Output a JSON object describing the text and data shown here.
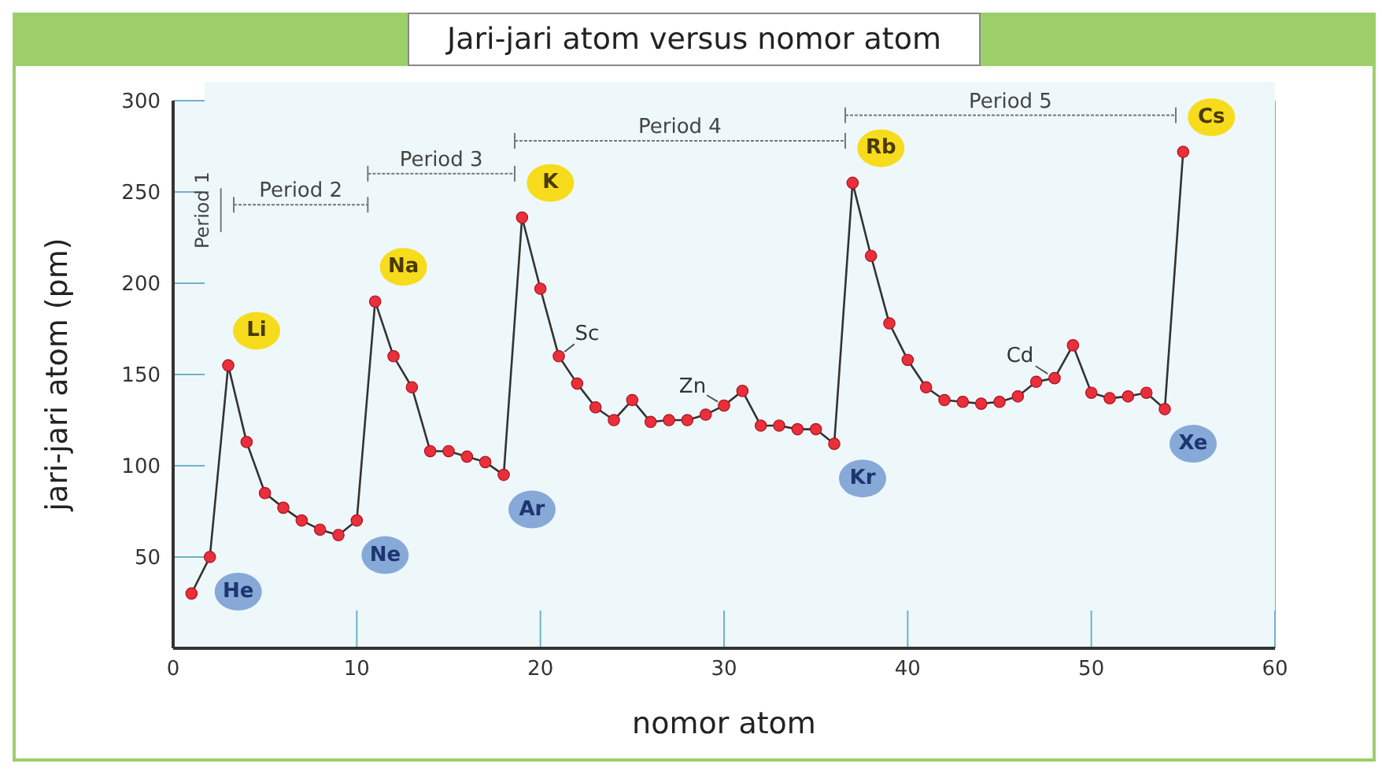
{
  "chart_data": {
    "type": "line",
    "title": "Jari-jari atom versus nomor atom",
    "xlabel": "nomor atom",
    "ylabel": "jari-jari atom (pm)",
    "x": [
      1,
      2,
      3,
      4,
      5,
      6,
      7,
      8,
      9,
      10,
      11,
      12,
      13,
      14,
      15,
      16,
      17,
      18,
      19,
      20,
      21,
      22,
      23,
      24,
      25,
      26,
      27,
      28,
      29,
      30,
      31,
      32,
      33,
      34,
      35,
      36,
      37,
      38,
      39,
      40,
      41,
      42,
      43,
      44,
      45,
      46,
      47,
      48,
      49,
      50,
      51,
      52,
      53,
      54,
      55
    ],
    "series": [
      {
        "color": "#e8303a",
        "values": [
          30,
          50,
          155,
          113,
          85,
          77,
          70,
          65,
          62,
          70,
          190,
          160,
          143,
          108,
          108,
          105,
          102,
          95,
          236,
          197,
          160,
          145,
          132,
          125,
          136,
          124,
          125,
          125,
          128,
          133,
          141,
          122,
          122,
          120,
          120,
          112,
          255,
          215,
          178,
          158,
          143,
          136,
          135,
          134,
          135,
          138,
          146,
          148,
          166,
          140,
          137,
          138,
          140,
          131,
          272
        ]
      }
    ],
    "xlim": [
      0,
      60
    ],
    "xticks": [
      0,
      10,
      20,
      30,
      40,
      50,
      60
    ],
    "ylim": [
      0,
      300
    ],
    "yticks": [
      50,
      100,
      150,
      200,
      250,
      300
    ],
    "grid": true,
    "marker": "circle",
    "line_style": "solid",
    "annotations": [
      "Period 1",
      "Period 2",
      "Period 3",
      "Period 4",
      "Period 5",
      {
        "text": "Li",
        "x": 3,
        "y": 155
      },
      {
        "text": "Na",
        "x": 11,
        "y": 190
      },
      {
        "text": "K",
        "x": 19,
        "y": 236
      },
      {
        "text": "Rb",
        "x": 37,
        "y": 255
      },
      {
        "text": "Cs",
        "x": 55,
        "y": 272
      },
      {
        "text": "He",
        "x": 2,
        "y": 50
      },
      {
        "text": "Ne",
        "x": 10,
        "y": 70
      },
      {
        "text": "Ar",
        "x": 18,
        "y": 95
      },
      {
        "text": "Kr",
        "x": 36,
        "y": 112
      },
      {
        "text": "Xe",
        "x": 54,
        "y": 131
      },
      {
        "text": "Sc",
        "x": 21,
        "y": 160
      },
      {
        "text": "Zn",
        "x": 30,
        "y": 133
      },
      {
        "text": "Cd",
        "x": 48,
        "y": 148
      }
    ]
  }
}
